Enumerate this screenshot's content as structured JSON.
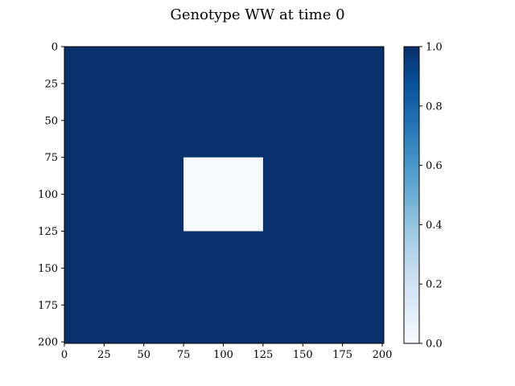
{
  "chart_data": {
    "type": "heatmap",
    "title": "Genotype WW at time 0",
    "xlabel": "",
    "ylabel": "",
    "colormap": "Blues",
    "background_value": 1.0,
    "grid_extent": [
      0,
      201
    ],
    "xlim": [
      0,
      201
    ],
    "ylim": [
      201,
      0
    ],
    "x_ticks": [
      0,
      25,
      50,
      75,
      100,
      125,
      150,
      175,
      200
    ],
    "y_ticks": [
      0,
      25,
      50,
      75,
      100,
      125,
      150,
      175,
      200
    ],
    "regions": [
      {
        "x_range": [
          75,
          125
        ],
        "y_range": [
          75,
          125
        ],
        "value": 0.0
      }
    ],
    "colorbar": {
      "range": [
        0.0,
        1.0
      ],
      "ticks": [
        "0.0",
        "0.2",
        "0.4",
        "0.6",
        "0.8",
        "1.0"
      ]
    },
    "colors": {
      "low": "#f7fbff",
      "high": "#08306b"
    },
    "grid": false
  }
}
